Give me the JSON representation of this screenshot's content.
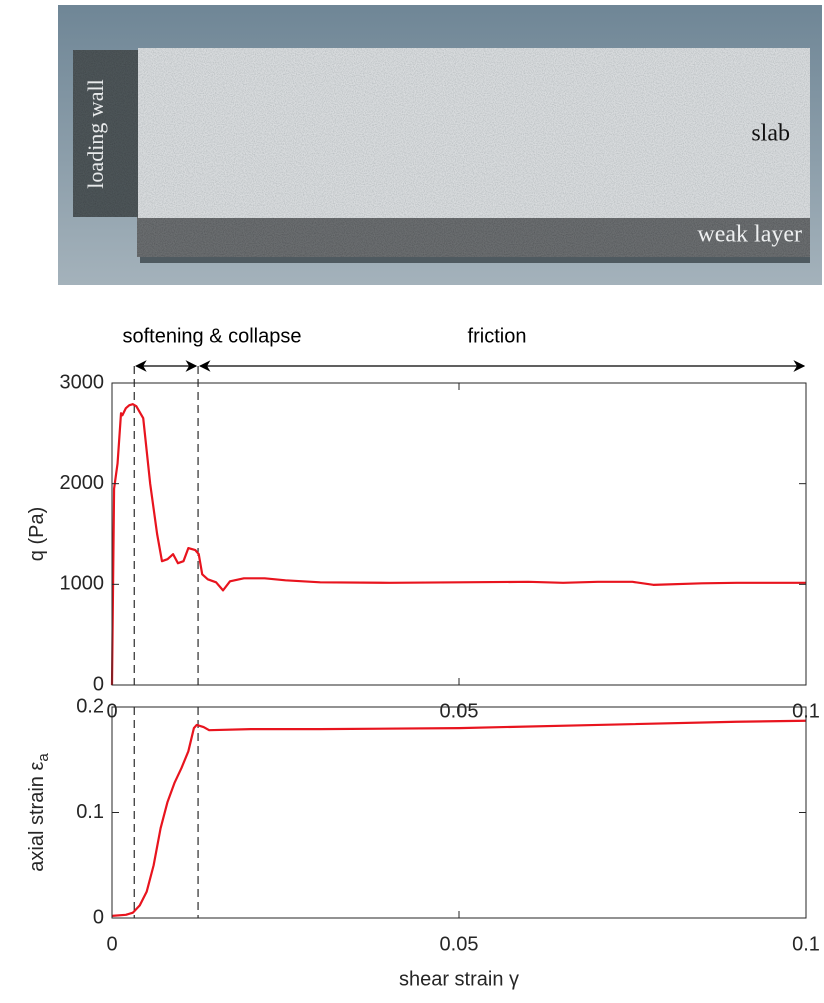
{
  "simulation_image": {
    "loading_wall": "loading wall",
    "slab": "slab",
    "weak_layer": "weak layer"
  },
  "chart_data": [
    {
      "type": "line",
      "ylabel": "q (Pa)",
      "annotations": [
        {
          "text": "softening & collapse",
          "from": 0.0032,
          "to": 0.0124
        },
        {
          "text": "friction",
          "from": 0.0124,
          "to": 0.1
        }
      ],
      "vlines": [
        0.0032,
        0.0124
      ],
      "x": [
        0,
        0.0003,
        0.0008,
        0.0013,
        0.0015,
        0.002,
        0.0025,
        0.003,
        0.0035,
        0.0045,
        0.0055,
        0.0065,
        0.0072,
        0.008,
        0.0088,
        0.0095,
        0.0103,
        0.011,
        0.012,
        0.0125,
        0.013,
        0.0138,
        0.015,
        0.016,
        0.017,
        0.019,
        0.022,
        0.025,
        0.03,
        0.04,
        0.05,
        0.06,
        0.065,
        0.07,
        0.075,
        0.078,
        0.085,
        0.09,
        0.1
      ],
      "series": [
        {
          "color": "#e8141e",
          "values": [
            0,
            1950,
            2200,
            2700,
            2680,
            2750,
            2780,
            2790,
            2770,
            2650,
            2000,
            1500,
            1230,
            1250,
            1300,
            1210,
            1230,
            1360,
            1340,
            1300,
            1100,
            1050,
            1020,
            940,
            1030,
            1060,
            1060,
            1040,
            1020,
            1015,
            1020,
            1025,
            1015,
            1025,
            1025,
            995,
            1010,
            1015,
            1015
          ]
        }
      ],
      "xlim": [
        0,
        0.1
      ],
      "xticks": [
        0,
        0.05,
        0.1
      ],
      "ylim": [
        0,
        3000
      ],
      "yticks": [
        0,
        1000,
        2000,
        3000
      ]
    },
    {
      "type": "line",
      "xlabel": "shear strain γ",
      "ylabel": "axial strain ε",
      "ylabel_subscript": "a",
      "vlines": [
        0.0032,
        0.0124
      ],
      "x": [
        0,
        0.002,
        0.003,
        0.004,
        0.005,
        0.006,
        0.007,
        0.008,
        0.009,
        0.01,
        0.011,
        0.0118,
        0.0122,
        0.0132,
        0.014,
        0.02,
        0.03,
        0.05,
        0.07,
        0.09,
        0.1
      ],
      "series": [
        {
          "color": "#e8141e",
          "values": [
            0.002,
            0.003,
            0.005,
            0.012,
            0.025,
            0.05,
            0.085,
            0.11,
            0.128,
            0.142,
            0.158,
            0.18,
            0.183,
            0.181,
            0.178,
            0.179,
            0.179,
            0.18,
            0.183,
            0.186,
            0.187
          ]
        }
      ],
      "xlim": [
        0,
        0.1
      ],
      "xticks": [
        0,
        0.05,
        0.1
      ],
      "ylim": [
        0,
        0.2
      ],
      "yticks": [
        0,
        0.1,
        0.2
      ]
    }
  ]
}
